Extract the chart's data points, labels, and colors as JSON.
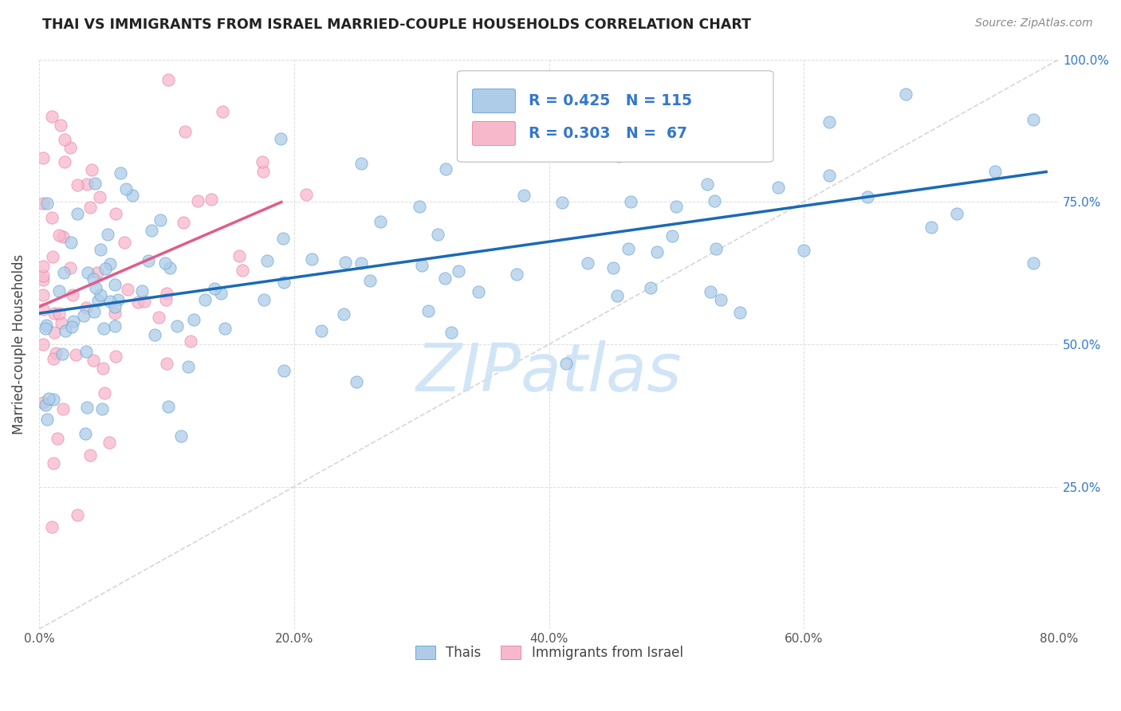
{
  "title": "THAI VS IMMIGRANTS FROM ISRAEL MARRIED-COUPLE HOUSEHOLDS CORRELATION CHART",
  "source": "Source: ZipAtlas.com",
  "ylabel": "Married-couple Households",
  "xlim": [
    0.0,
    0.8
  ],
  "ylim": [
    0.0,
    1.0
  ],
  "thai_R": 0.425,
  "thai_N": 115,
  "israel_R": 0.303,
  "israel_N": 67,
  "thai_color": "#aecce8",
  "thai_edge_color": "#5a9fd4",
  "thai_line_color": "#1b6ab5",
  "israel_color": "#f7b8cc",
  "israel_edge_color": "#e87da0",
  "israel_line_color": "#e05c8a",
  "diagonal_color": "#cccccc",
  "background_color": "#ffffff",
  "grid_color": "#dddddd",
  "title_color": "#222222",
  "source_color": "#888888",
  "right_tick_color": "#3377cc",
  "legend_color": "#3377cc",
  "watermark_text": "ZIPatlas",
  "watermark_color": "#cce3f5",
  "x_ticks": [
    0.0,
    0.2,
    0.4,
    0.6,
    0.8
  ],
  "y_ticks_right": [
    0.25,
    0.5,
    0.75,
    1.0
  ],
  "y_tick_labels": [
    "25.0%",
    "50.0%",
    "75.0%",
    "100.0%"
  ]
}
